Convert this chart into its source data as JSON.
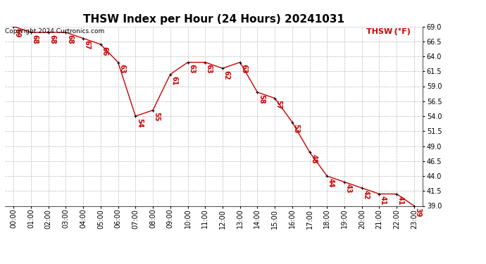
{
  "title": "THSW Index per Hour (24 Hours) 20241031",
  "legend_label": "THSW (°F)",
  "copyright": "Copyright 2024 Curtronics.com",
  "hours": [
    "00:00",
    "01:00",
    "02:00",
    "03:00",
    "04:00",
    "05:00",
    "06:00",
    "07:00",
    "08:00",
    "09:00",
    "10:00",
    "11:00",
    "12:00",
    "13:00",
    "14:00",
    "15:00",
    "16:00",
    "17:00",
    "18:00",
    "19:00",
    "20:00",
    "21:00",
    "22:00",
    "23:00"
  ],
  "values": [
    69,
    68,
    68,
    68,
    67,
    66,
    63,
    54,
    55,
    61,
    63,
    63,
    62,
    63,
    58,
    57,
    53,
    48,
    44,
    43,
    42,
    41,
    41,
    39
  ],
  "line_color": "#cc0000",
  "marker_color": "#000000",
  "background_color": "#ffffff",
  "grid_color": "#bbbbbb",
  "ylim_min": 39.0,
  "ylim_max": 69.0,
  "yticks": [
    39.0,
    41.5,
    44.0,
    46.5,
    49.0,
    51.5,
    54.0,
    56.5,
    59.0,
    61.5,
    64.0,
    66.5,
    69.0
  ],
  "title_fontsize": 11,
  "annot_fontsize": 7,
  "tick_fontsize": 7,
  "copyright_fontsize": 6.5,
  "legend_fontsize": 8
}
